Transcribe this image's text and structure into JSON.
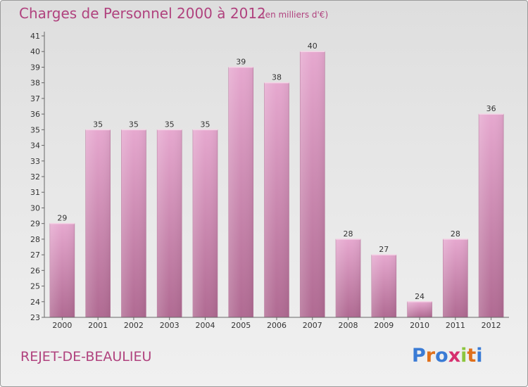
{
  "header": {
    "title": "Charges de Personnel 2000 à 2012",
    "unit": "(en milliers d'€)"
  },
  "footer": {
    "place": "REJET-DE-BEAULIEU",
    "brand": "Proxiti"
  },
  "colors": {
    "title": "#b0427e",
    "bar_top": "#e6a8cf",
    "bar_bottom": "#b06a92",
    "brand_letters": [
      "#3a7bd5",
      "#e0701b",
      "#3a7bd5",
      "#d62f6e",
      "#8cc63e",
      "#e0701b",
      "#3a7bd5"
    ]
  },
  "chart_data": {
    "type": "bar",
    "title": "Charges de Personnel 2000 à 2012",
    "subtitle": "(en milliers d'€)",
    "categories": [
      "2000",
      "2001",
      "2002",
      "2003",
      "2004",
      "2005",
      "2006",
      "2007",
      "2008",
      "2009",
      "2010",
      "2011",
      "2012"
    ],
    "values": [
      29,
      35,
      35,
      35,
      35,
      39,
      38,
      40,
      28,
      27,
      24,
      28,
      36
    ],
    "ylim": [
      23,
      41
    ],
    "yticks": [
      23,
      24,
      25,
      26,
      27,
      28,
      29,
      30,
      31,
      32,
      33,
      34,
      35,
      36,
      37,
      38,
      39,
      40,
      41
    ],
    "grid": false,
    "legend": "none"
  }
}
